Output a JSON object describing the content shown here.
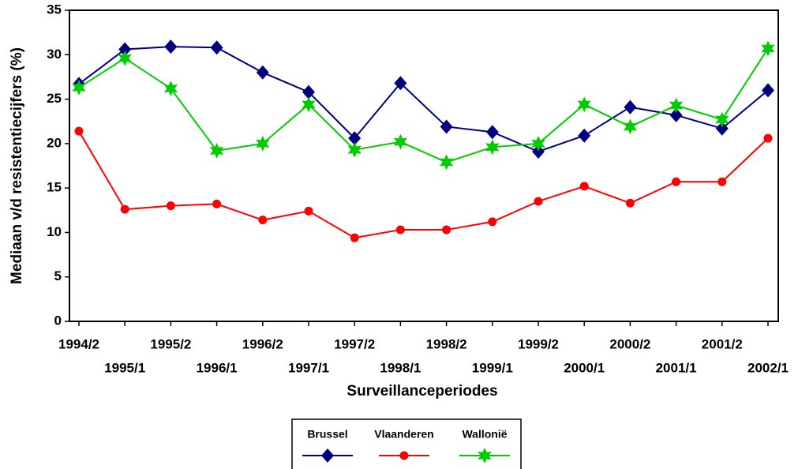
{
  "chart_data": {
    "type": "line",
    "x_label": "Surveillanceperiodes",
    "y_label": "Mediaan v/d resistentiecijfers (%)",
    "categories": [
      "1994/2",
      "1995/1",
      "1995/2",
      "1996/1",
      "1996/2",
      "1997/1",
      "1997/2",
      "1998/1",
      "1998/2",
      "1999/1",
      "1999/2",
      "2000/1",
      "2000/2",
      "2001/1",
      "2001/2",
      "2002/1"
    ],
    "series": [
      {
        "name": "Brussel",
        "color": "#000080",
        "marker": "diamond",
        "values": [
          26.7,
          30.6,
          30.9,
          30.8,
          28.0,
          25.8,
          20.6,
          26.8,
          21.9,
          21.3,
          19.1,
          20.9,
          24.1,
          23.2,
          21.7,
          26.0
        ]
      },
      {
        "name": "Vlaanderen",
        "color": "#ff0000",
        "marker": "circle",
        "values": [
          21.4,
          12.6,
          13.0,
          13.2,
          11.4,
          12.4,
          9.4,
          10.3,
          10.3,
          11.2,
          13.5,
          15.2,
          13.3,
          15.7,
          15.7,
          20.6
        ]
      },
      {
        "name": "Wallonië",
        "color": "#00cc00",
        "marker": "star",
        "values": [
          26.3,
          29.6,
          26.2,
          19.2,
          20.0,
          24.4,
          19.3,
          20.2,
          17.9,
          19.6,
          20.0,
          24.4,
          21.9,
          24.3,
          22.7,
          30.7
        ]
      }
    ],
    "ylim": [
      0,
      35
    ],
    "yticks": [
      0,
      5,
      10,
      15,
      20,
      25,
      30,
      35
    ],
    "grid": false,
    "legend": "bottom"
  }
}
